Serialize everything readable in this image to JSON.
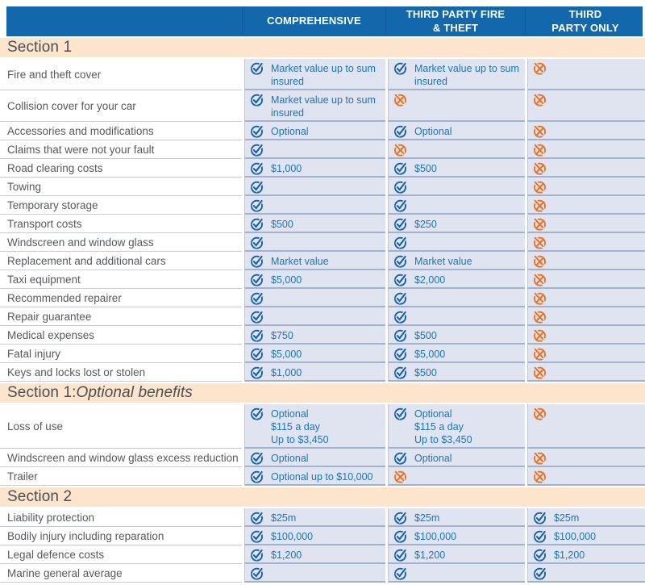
{
  "colors": {
    "header_blue": "#1368ac",
    "header_divider": "#0e5c9e",
    "section_peach": "#fce4cd",
    "section_text": "#4d4e53",
    "cell_bg": "#dfe4f0",
    "cell_separator": "#a3b1d1",
    "label_text": "#58595d",
    "value_blue": "#1c74ba",
    "check_blue": "#1560a8",
    "cross_orange": "#ec7123"
  },
  "header": {
    "columns": [
      "COMPREHENSIVE",
      "THIRD PARTY FIRE\n& THEFT",
      "THIRD\nPARTY ONLY"
    ]
  },
  "icons": {
    "check": "check-icon",
    "cross": "cross-icon"
  },
  "sections": [
    {
      "title": "Section 1",
      "title_italic": "",
      "rows": [
        {
          "label": "Fire and theft cover",
          "cells": [
            {
              "icon": "check",
              "text": "Market value up to sum\ninsured"
            },
            {
              "icon": "check",
              "text": "Market value up to sum\ninsured"
            },
            {
              "icon": "cross",
              "text": ""
            }
          ]
        },
        {
          "label": "Collision cover for your car",
          "cells": [
            {
              "icon": "check",
              "text": "Market value up to sum\ninsured"
            },
            {
              "icon": "cross",
              "text": ""
            },
            {
              "icon": "cross",
              "text": ""
            }
          ]
        },
        {
          "label": "Accessories and modifications",
          "cells": [
            {
              "icon": "check",
              "text": "Optional"
            },
            {
              "icon": "check",
              "text": "Optional"
            },
            {
              "icon": "cross",
              "text": ""
            }
          ]
        },
        {
          "label": "Claims that were not your fault",
          "cells": [
            {
              "icon": "check",
              "text": ""
            },
            {
              "icon": "cross",
              "text": ""
            },
            {
              "icon": "cross",
              "text": ""
            }
          ]
        },
        {
          "label": "Road clearing costs",
          "cells": [
            {
              "icon": "check",
              "text": "$1,000"
            },
            {
              "icon": "check",
              "text": "$500"
            },
            {
              "icon": "cross",
              "text": ""
            }
          ]
        },
        {
          "label": "Towing",
          "cells": [
            {
              "icon": "check",
              "text": ""
            },
            {
              "icon": "check",
              "text": ""
            },
            {
              "icon": "cross",
              "text": ""
            }
          ]
        },
        {
          "label": "Temporary storage",
          "cells": [
            {
              "icon": "check",
              "text": ""
            },
            {
              "icon": "check",
              "text": ""
            },
            {
              "icon": "cross",
              "text": ""
            }
          ]
        },
        {
          "label": "Transport costs",
          "cells": [
            {
              "icon": "check",
              "text": "$500"
            },
            {
              "icon": "check",
              "text": "$250"
            },
            {
              "icon": "cross",
              "text": ""
            }
          ]
        },
        {
          "label": "Windscreen and window glass",
          "cells": [
            {
              "icon": "check",
              "text": ""
            },
            {
              "icon": "check",
              "text": ""
            },
            {
              "icon": "cross",
              "text": ""
            }
          ]
        },
        {
          "label": "Replacement and additional cars",
          "cells": [
            {
              "icon": "check",
              "text": "Market value"
            },
            {
              "icon": "check",
              "text": "Market value"
            },
            {
              "icon": "cross",
              "text": ""
            }
          ]
        },
        {
          "label": "Taxi equipment",
          "cells": [
            {
              "icon": "check",
              "text": "$5,000"
            },
            {
              "icon": "check",
              "text": "$2,000"
            },
            {
              "icon": "cross",
              "text": ""
            }
          ]
        },
        {
          "label": "Recommended repairer",
          "cells": [
            {
              "icon": "check",
              "text": ""
            },
            {
              "icon": "check",
              "text": ""
            },
            {
              "icon": "cross",
              "text": ""
            }
          ]
        },
        {
          "label": "Repair guarantee",
          "cells": [
            {
              "icon": "check",
              "text": ""
            },
            {
              "icon": "check",
              "text": ""
            },
            {
              "icon": "cross",
              "text": ""
            }
          ]
        },
        {
          "label": "Medical expenses",
          "cells": [
            {
              "icon": "check",
              "text": "$750"
            },
            {
              "icon": "check",
              "text": "$500"
            },
            {
              "icon": "cross",
              "text": ""
            }
          ]
        },
        {
          "label": "Fatal injury",
          "cells": [
            {
              "icon": "check",
              "text": "$5,000"
            },
            {
              "icon": "check",
              "text": "$5,000"
            },
            {
              "icon": "cross",
              "text": ""
            }
          ]
        },
        {
          "label": "Keys and locks lost or stolen",
          "cells": [
            {
              "icon": "check",
              "text": "$1,000"
            },
            {
              "icon": "check",
              "text": "$500"
            },
            {
              "icon": "cross",
              "text": ""
            }
          ]
        }
      ]
    },
    {
      "title": "Section 1: ",
      "title_italic": "Optional benefits",
      "rows": [
        {
          "label": "Loss of use",
          "cells": [
            {
              "icon": "check",
              "text": "Optional\n$115 a day\nUp to $3,450"
            },
            {
              "icon": "check",
              "text": "Optional\n$115 a day\nUp to $3,450"
            },
            {
              "icon": "cross",
              "text": ""
            }
          ]
        },
        {
          "label": "Windscreen and window glass excess reduction",
          "cells": [
            {
              "icon": "check",
              "text": "Optional"
            },
            {
              "icon": "check",
              "text": "Optional"
            },
            {
              "icon": "cross",
              "text": ""
            }
          ]
        },
        {
          "label": "Trailer",
          "cells": [
            {
              "icon": "check",
              "text": "Optional up to $10,000"
            },
            {
              "icon": "cross",
              "text": ""
            },
            {
              "icon": "cross",
              "text": ""
            }
          ]
        }
      ]
    },
    {
      "title": "Section 2",
      "title_italic": "",
      "rows": [
        {
          "label": "Liability protection",
          "cells": [
            {
              "icon": "check",
              "text": "$25m"
            },
            {
              "icon": "check",
              "text": "$25m"
            },
            {
              "icon": "check",
              "text": "$25m"
            }
          ]
        },
        {
          "label": "Bodily injury including reparation",
          "cells": [
            {
              "icon": "check",
              "text": "$100,000"
            },
            {
              "icon": "check",
              "text": "$100,000"
            },
            {
              "icon": "check",
              "text": "$100,000"
            }
          ]
        },
        {
          "label": "Legal defence costs",
          "cells": [
            {
              "icon": "check",
              "text": "$1,200"
            },
            {
              "icon": "check",
              "text": "$1,200"
            },
            {
              "icon": "check",
              "text": "$1,200"
            }
          ]
        },
        {
          "label": "Marine general average",
          "cells": [
            {
              "icon": "check",
              "text": ""
            },
            {
              "icon": "check",
              "text": ""
            },
            {
              "icon": "check",
              "text": ""
            }
          ]
        }
      ]
    }
  ]
}
